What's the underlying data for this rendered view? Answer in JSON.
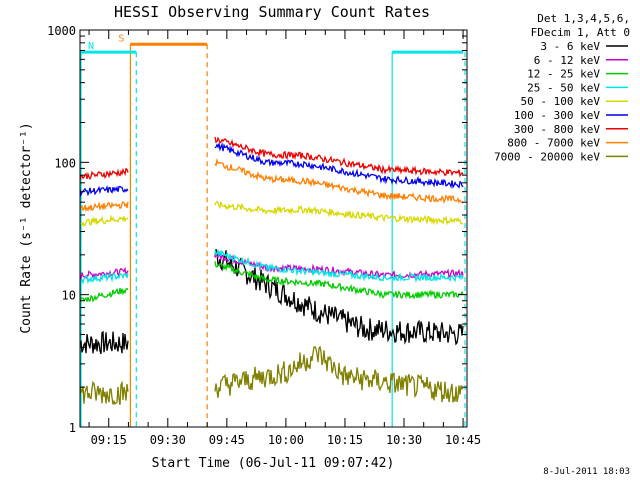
{
  "chart_data": {
    "type": "line",
    "title": "HESSI Observing Summary Count Rates",
    "xlabel": "Start Time (06-Jul-11 09:07:42)",
    "ylabel": "Count Rate (s⁻¹ detector⁻¹)",
    "yscale": "log",
    "ylim": [
      1,
      1000
    ],
    "xlim": [
      "09:07:42",
      "10:46:00"
    ],
    "xticks": [
      "09:15",
      "09:30",
      "09:45",
      "10:00",
      "10:15",
      "10:30",
      "10:45"
    ],
    "yticks": [
      "1",
      "10",
      "100",
      "1000"
    ],
    "footer": "8-Jul-2011 18:03",
    "legend": {
      "header": [
        "Det 1,3,4,5,6,",
        "FDecim 1, Att 0"
      ],
      "placement": "right"
    },
    "series": [
      {
        "name": "3 - 6 keV",
        "color": "#000000",
        "segments": [
          {
            "x": [
              "09:07:42",
              "09:20:00"
            ],
            "y": [
              4.3,
              4.3
            ]
          },
          {
            "x": [
              "09:42:00",
              "09:55:00",
              "10:08:00",
              "10:20:00",
              "10:45:00"
            ],
            "y": [
              20,
              12,
              7.5,
              5.5,
              5
            ]
          }
        ]
      },
      {
        "name": "6 - 12 keV",
        "color": "#cc00cc",
        "segments": [
          {
            "x": [
              "09:07:42",
              "09:20:00"
            ],
            "y": [
              14,
              15
            ]
          },
          {
            "x": [
              "09:42:00",
              "09:55:00",
              "10:10:00",
              "10:25:00",
              "10:45:00"
            ],
            "y": [
              20,
              16,
              15.5,
              14,
              14.5
            ]
          }
        ]
      },
      {
        "name": "12 - 25 keV",
        "color": "#00cc00",
        "segments": [
          {
            "x": [
              "09:07:42",
              "09:20:00"
            ],
            "y": [
              9,
              11
            ]
          },
          {
            "x": [
              "09:42:00",
              "09:55:00",
              "10:10:00",
              "10:25:00",
              "10:45:00"
            ],
            "y": [
              17,
              13,
              12,
              10,
              10
            ]
          }
        ]
      },
      {
        "name": "25 - 50 keV",
        "color": "#00e5e5",
        "segments": [
          {
            "x": [
              "09:07:42",
              "09:20:00"
            ],
            "y": [
              13,
              14
            ]
          },
          {
            "x": [
              "09:42:00",
              "09:55:00",
              "10:10:00",
              "10:25:00",
              "10:45:00"
            ],
            "y": [
              21,
              16,
              14.5,
              13.5,
              13.5
            ]
          }
        ]
      },
      {
        "name": "50 - 100 keV",
        "color": "#d8d800",
        "segments": [
          {
            "x": [
              "09:07:42",
              "09:20:00"
            ],
            "y": [
              35,
              38
            ]
          },
          {
            "x": [
              "09:42:00",
              "09:55:00",
              "10:05:00",
              "10:25:00",
              "10:45:00"
            ],
            "y": [
              48,
              43,
              44,
              38,
              36
            ]
          }
        ]
      },
      {
        "name": "100 - 300 keV",
        "color": "#0000ee",
        "segments": [
          {
            "x": [
              "09:07:42",
              "09:20:00"
            ],
            "y": [
              60,
              63
            ]
          },
          {
            "x": [
              "09:42:00",
              "09:55:00",
              "10:05:00",
              "10:25:00",
              "10:45:00"
            ],
            "y": [
              135,
              100,
              97,
              75,
              68
            ]
          }
        ]
      },
      {
        "name": "300 - 800 keV",
        "color": "#ee0000",
        "segments": [
          {
            "x": [
              "09:07:42",
              "09:20:00"
            ],
            "y": [
              78,
              85
            ]
          },
          {
            "x": [
              "09:42:00",
              "09:55:00",
              "10:05:00",
              "10:25:00",
              "10:45:00"
            ],
            "y": [
              150,
              115,
              112,
              88,
              83
            ]
          }
        ]
      },
      {
        "name": "800 - 7000 keV",
        "color": "#ff7f00",
        "segments": [
          {
            "x": [
              "09:07:42",
              "09:20:00"
            ],
            "y": [
              45,
              48
            ]
          },
          {
            "x": [
              "09:42:00",
              "09:55:00",
              "10:05:00",
              "10:25:00",
              "10:45:00"
            ],
            "y": [
              100,
              75,
              72,
              56,
              52
            ]
          }
        ]
      },
      {
        "name": "7000 - 20000 keV",
        "color": "#808000",
        "segments": [
          {
            "x": [
              "09:07:42",
              "09:20:00"
            ],
            "y": [
              1.8,
              1.8
            ]
          },
          {
            "x": [
              "09:42:00",
              "10:00:00",
              "10:08:00",
              "10:15:00",
              "10:45:00"
            ],
            "y": [
              2,
              2.6,
              3.6,
              2.4,
              1.8
            ]
          }
        ]
      }
    ],
    "annotations": [
      {
        "label": "S",
        "color": "#ff7f00",
        "flag_y": 780,
        "span": [
          "09:20:30",
          "09:40:00"
        ]
      },
      {
        "label": "N",
        "color": "#00e5e5",
        "flag_y": 680,
        "span": [
          "09:07:42",
          "09:22:00"
        ]
      },
      {
        "label": "",
        "color": "#00e5e5",
        "flag_y": 680,
        "span": [
          "10:27:00",
          "10:45:00"
        ]
      }
    ]
  }
}
